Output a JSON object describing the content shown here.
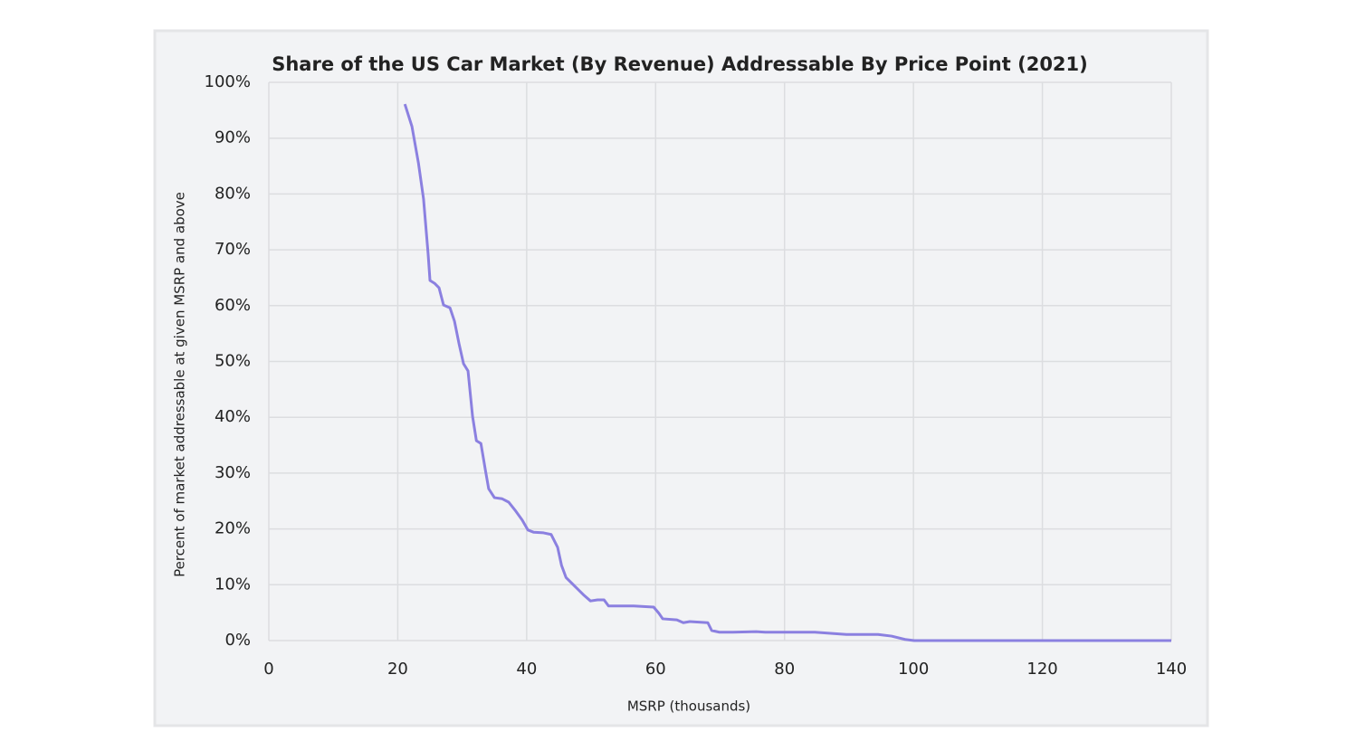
{
  "chart_data": {
    "type": "line",
    "title": "Share of the US Car Market (By Revenue) Addressable By Price Point (2021)",
    "x_label": "MSRP (thousands)",
    "y_label": "Percent of market addressable at given MSRP and above",
    "x": [
      21.1,
      22.2,
      23.2,
      24.0,
      24.7,
      25.0,
      25.7,
      26.4,
      27.1,
      28.1,
      28.8,
      29.5,
      30.2,
      30.9,
      31.6,
      32.2,
      32.9,
      33.6,
      34.1,
      35.0,
      36.2,
      37.2,
      38.3,
      39.3,
      40.2,
      41.1,
      42.6,
      43.8,
      44.8,
      45.4,
      46.1,
      47.5,
      48.9,
      49.9,
      51.0,
      52.0,
      52.7,
      54.5,
      56.6,
      59.7,
      60.5,
      61.1,
      63.3,
      64.3,
      65.3,
      68.1,
      68.7,
      69.9,
      72.0,
      75.6,
      77.0,
      84.7,
      89.6,
      94.5,
      96.6,
      98.7,
      100.1,
      140
    ],
    "series": [
      {
        "name": "Share addressable",
        "color": "#8b80e0",
        "values": [
          96.1,
          92.1,
          85.6,
          79.1,
          69.4,
          64.5,
          64.0,
          63.2,
          60.1,
          59.6,
          57.2,
          53.2,
          49.6,
          48.3,
          40.2,
          35.8,
          35.3,
          30.5,
          27.2,
          25.6,
          25.4,
          24.8,
          23.2,
          21.6,
          19.8,
          19.4,
          19.3,
          19.0,
          16.7,
          13.5,
          11.3,
          9.7,
          8.1,
          7.1,
          7.3,
          7.3,
          6.2,
          6.2,
          6.2,
          6.0,
          4.9,
          3.9,
          3.7,
          3.2,
          3.4,
          3.2,
          1.8,
          1.5,
          1.5,
          1.6,
          1.5,
          1.5,
          1.1,
          1.1,
          0.8,
          0.2,
          0,
          0
        ]
      }
    ],
    "xlim": [
      0,
      140
    ],
    "xticks": [
      0,
      20,
      40,
      60,
      80,
      100,
      120,
      140
    ],
    "ylim": [
      0,
      100
    ],
    "yticks": [
      {
        "value": 0,
        "label": "0%"
      },
      {
        "value": 10,
        "label": "10%"
      },
      {
        "value": 20,
        "label": "20%"
      },
      {
        "value": 30,
        "label": "30%"
      },
      {
        "value": 40,
        "label": "40%"
      },
      {
        "value": 50,
        "label": "50%"
      },
      {
        "value": 60,
        "label": "60%"
      },
      {
        "value": 70,
        "label": "70%"
      },
      {
        "value": 80,
        "label": "80%"
      },
      {
        "value": 90,
        "label": "90%"
      },
      {
        "value": 100,
        "label": "100%"
      }
    ],
    "grid": true
  }
}
